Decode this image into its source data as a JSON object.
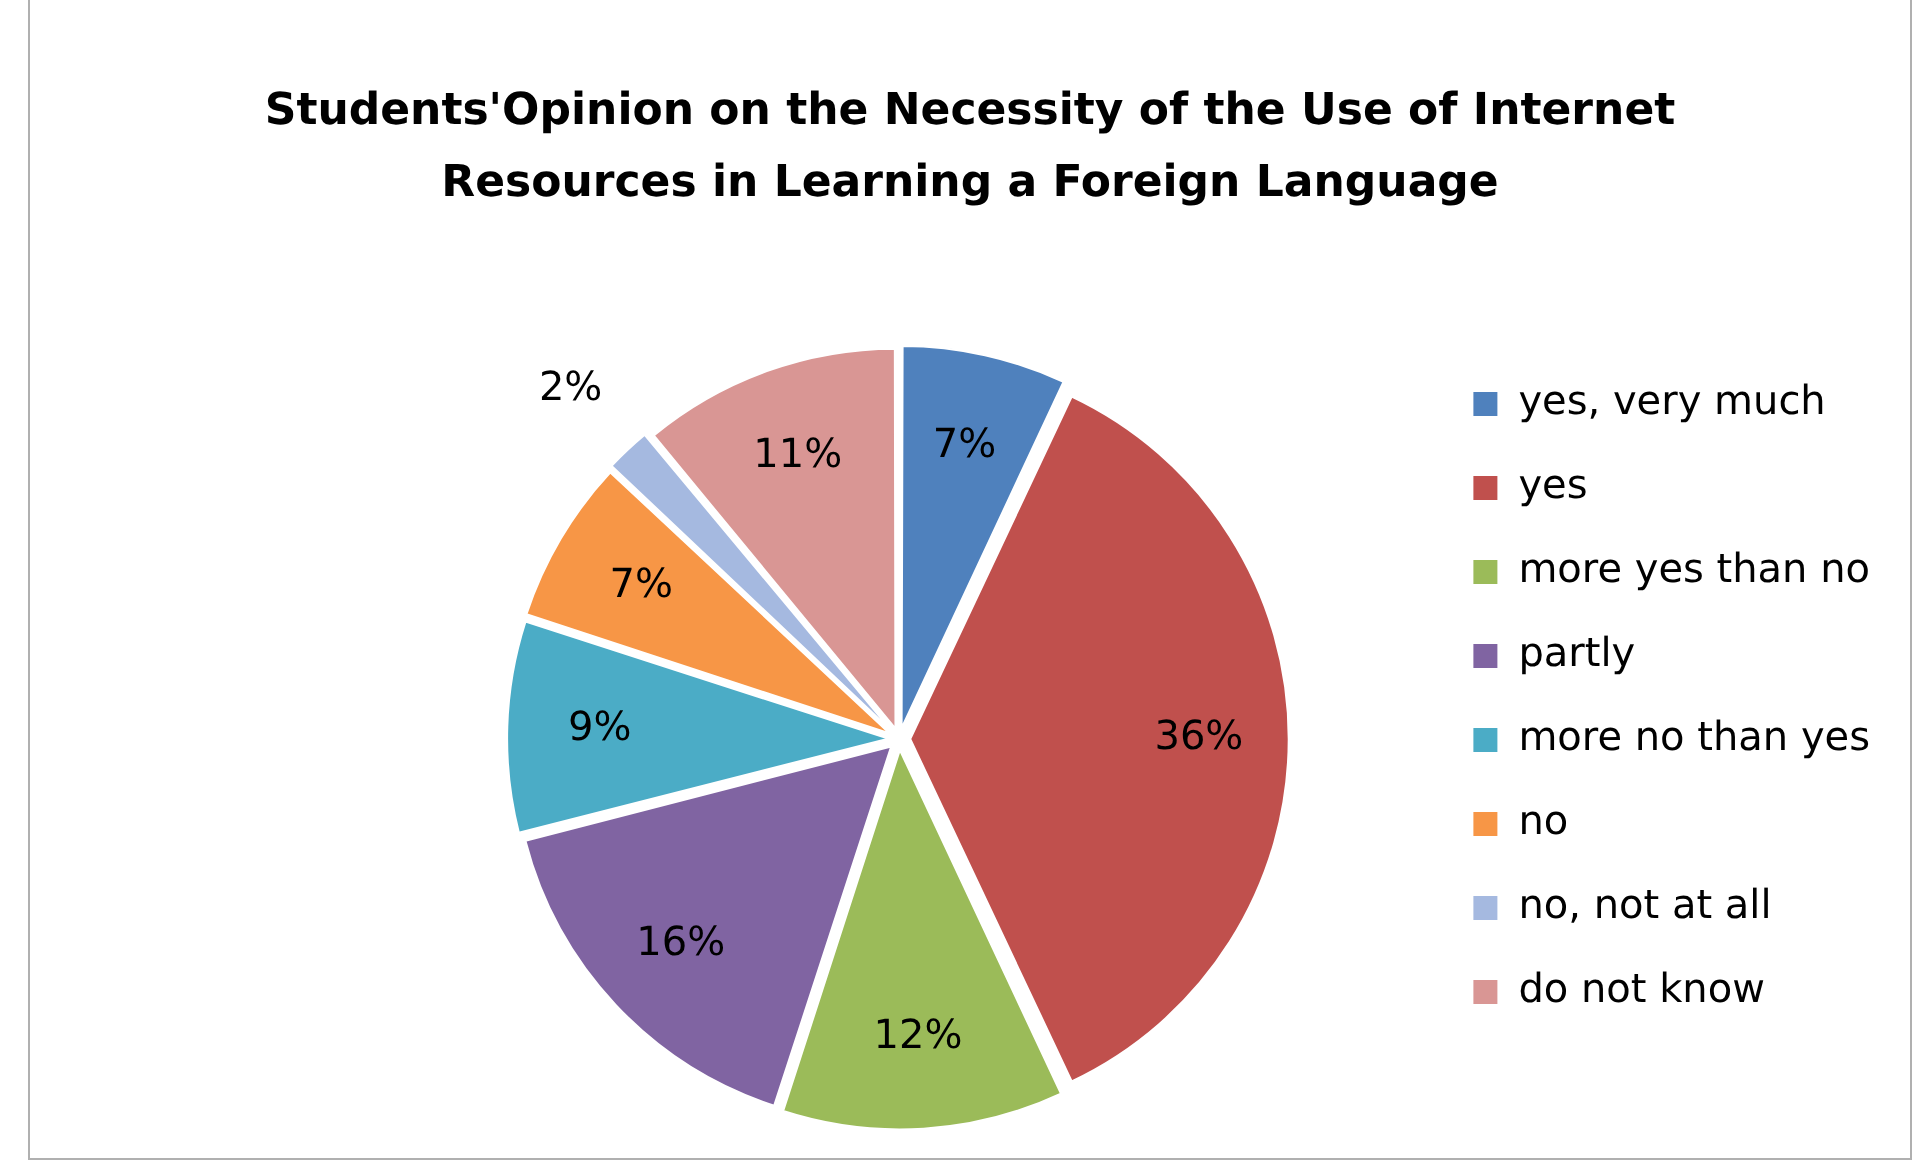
{
  "chart_data": {
    "type": "pie",
    "title": "Students'Opinion on the Necessity of the Use of Internet Resources in Learning a Foreign Language",
    "categories": [
      "yes, very much",
      "yes",
      "more yes than no",
      "partly",
      "more no than yes",
      "no",
      "no, not at all",
      "do not know"
    ],
    "values": [
      7,
      36,
      12,
      16,
      9,
      7,
      2,
      11
    ],
    "colors": [
      "#4f81bd",
      "#c0504d",
      "#9bbb59",
      "#8064a2",
      "#4bacc6",
      "#f79646",
      "#a5b9e0",
      "#d99694"
    ],
    "value_labels": [
      "7%",
      "36%",
      "12%",
      "16%",
      "9%",
      "7%",
      "2%",
      "11%"
    ],
    "legend": "right"
  }
}
